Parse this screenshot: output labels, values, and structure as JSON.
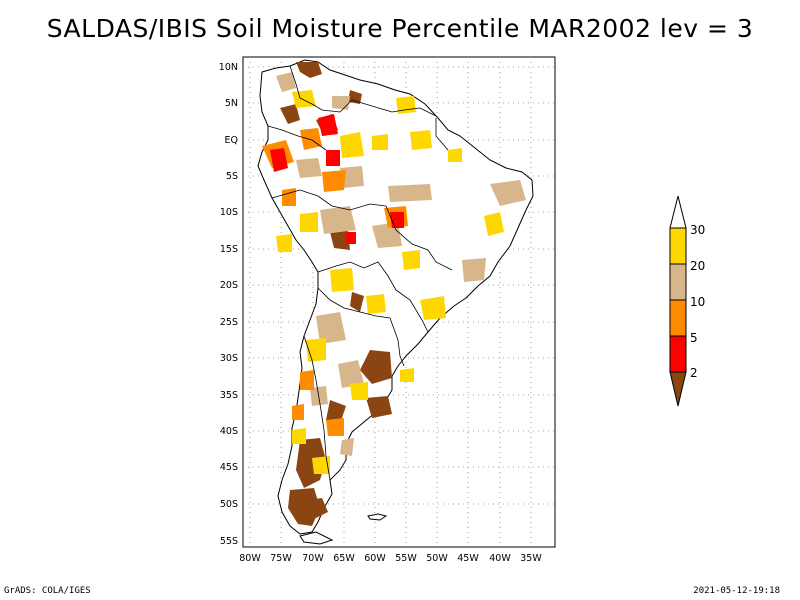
{
  "title": "SALDAS/IBIS Soil Moisture Percentile MAR2002 lev = 3",
  "map": {
    "lat_labels": [
      "10N",
      "5N",
      "EQ",
      "5S",
      "10S",
      "15S",
      "20S",
      "25S",
      "30S",
      "35S",
      "40S",
      "45S",
      "50S",
      "55S"
    ],
    "lon_labels": [
      "80W",
      "75W",
      "70W",
      "65W",
      "60W",
      "55W",
      "50W",
      "45W",
      "40W",
      "35W"
    ]
  },
  "colorbar": {
    "labels": [
      "30",
      "20",
      "10",
      "5",
      "2"
    ],
    "colors": {
      "above30": "#ffffff",
      "c20_30": "#ffd700",
      "c10_20": "#d8b68c",
      "c5_10": "#ff8c00",
      "c2_5": "#ff0000",
      "below2": "#8b4513"
    }
  },
  "footer": {
    "left": "GrADS: COLA/IGES",
    "right": "2021-05-12-19:18"
  }
}
